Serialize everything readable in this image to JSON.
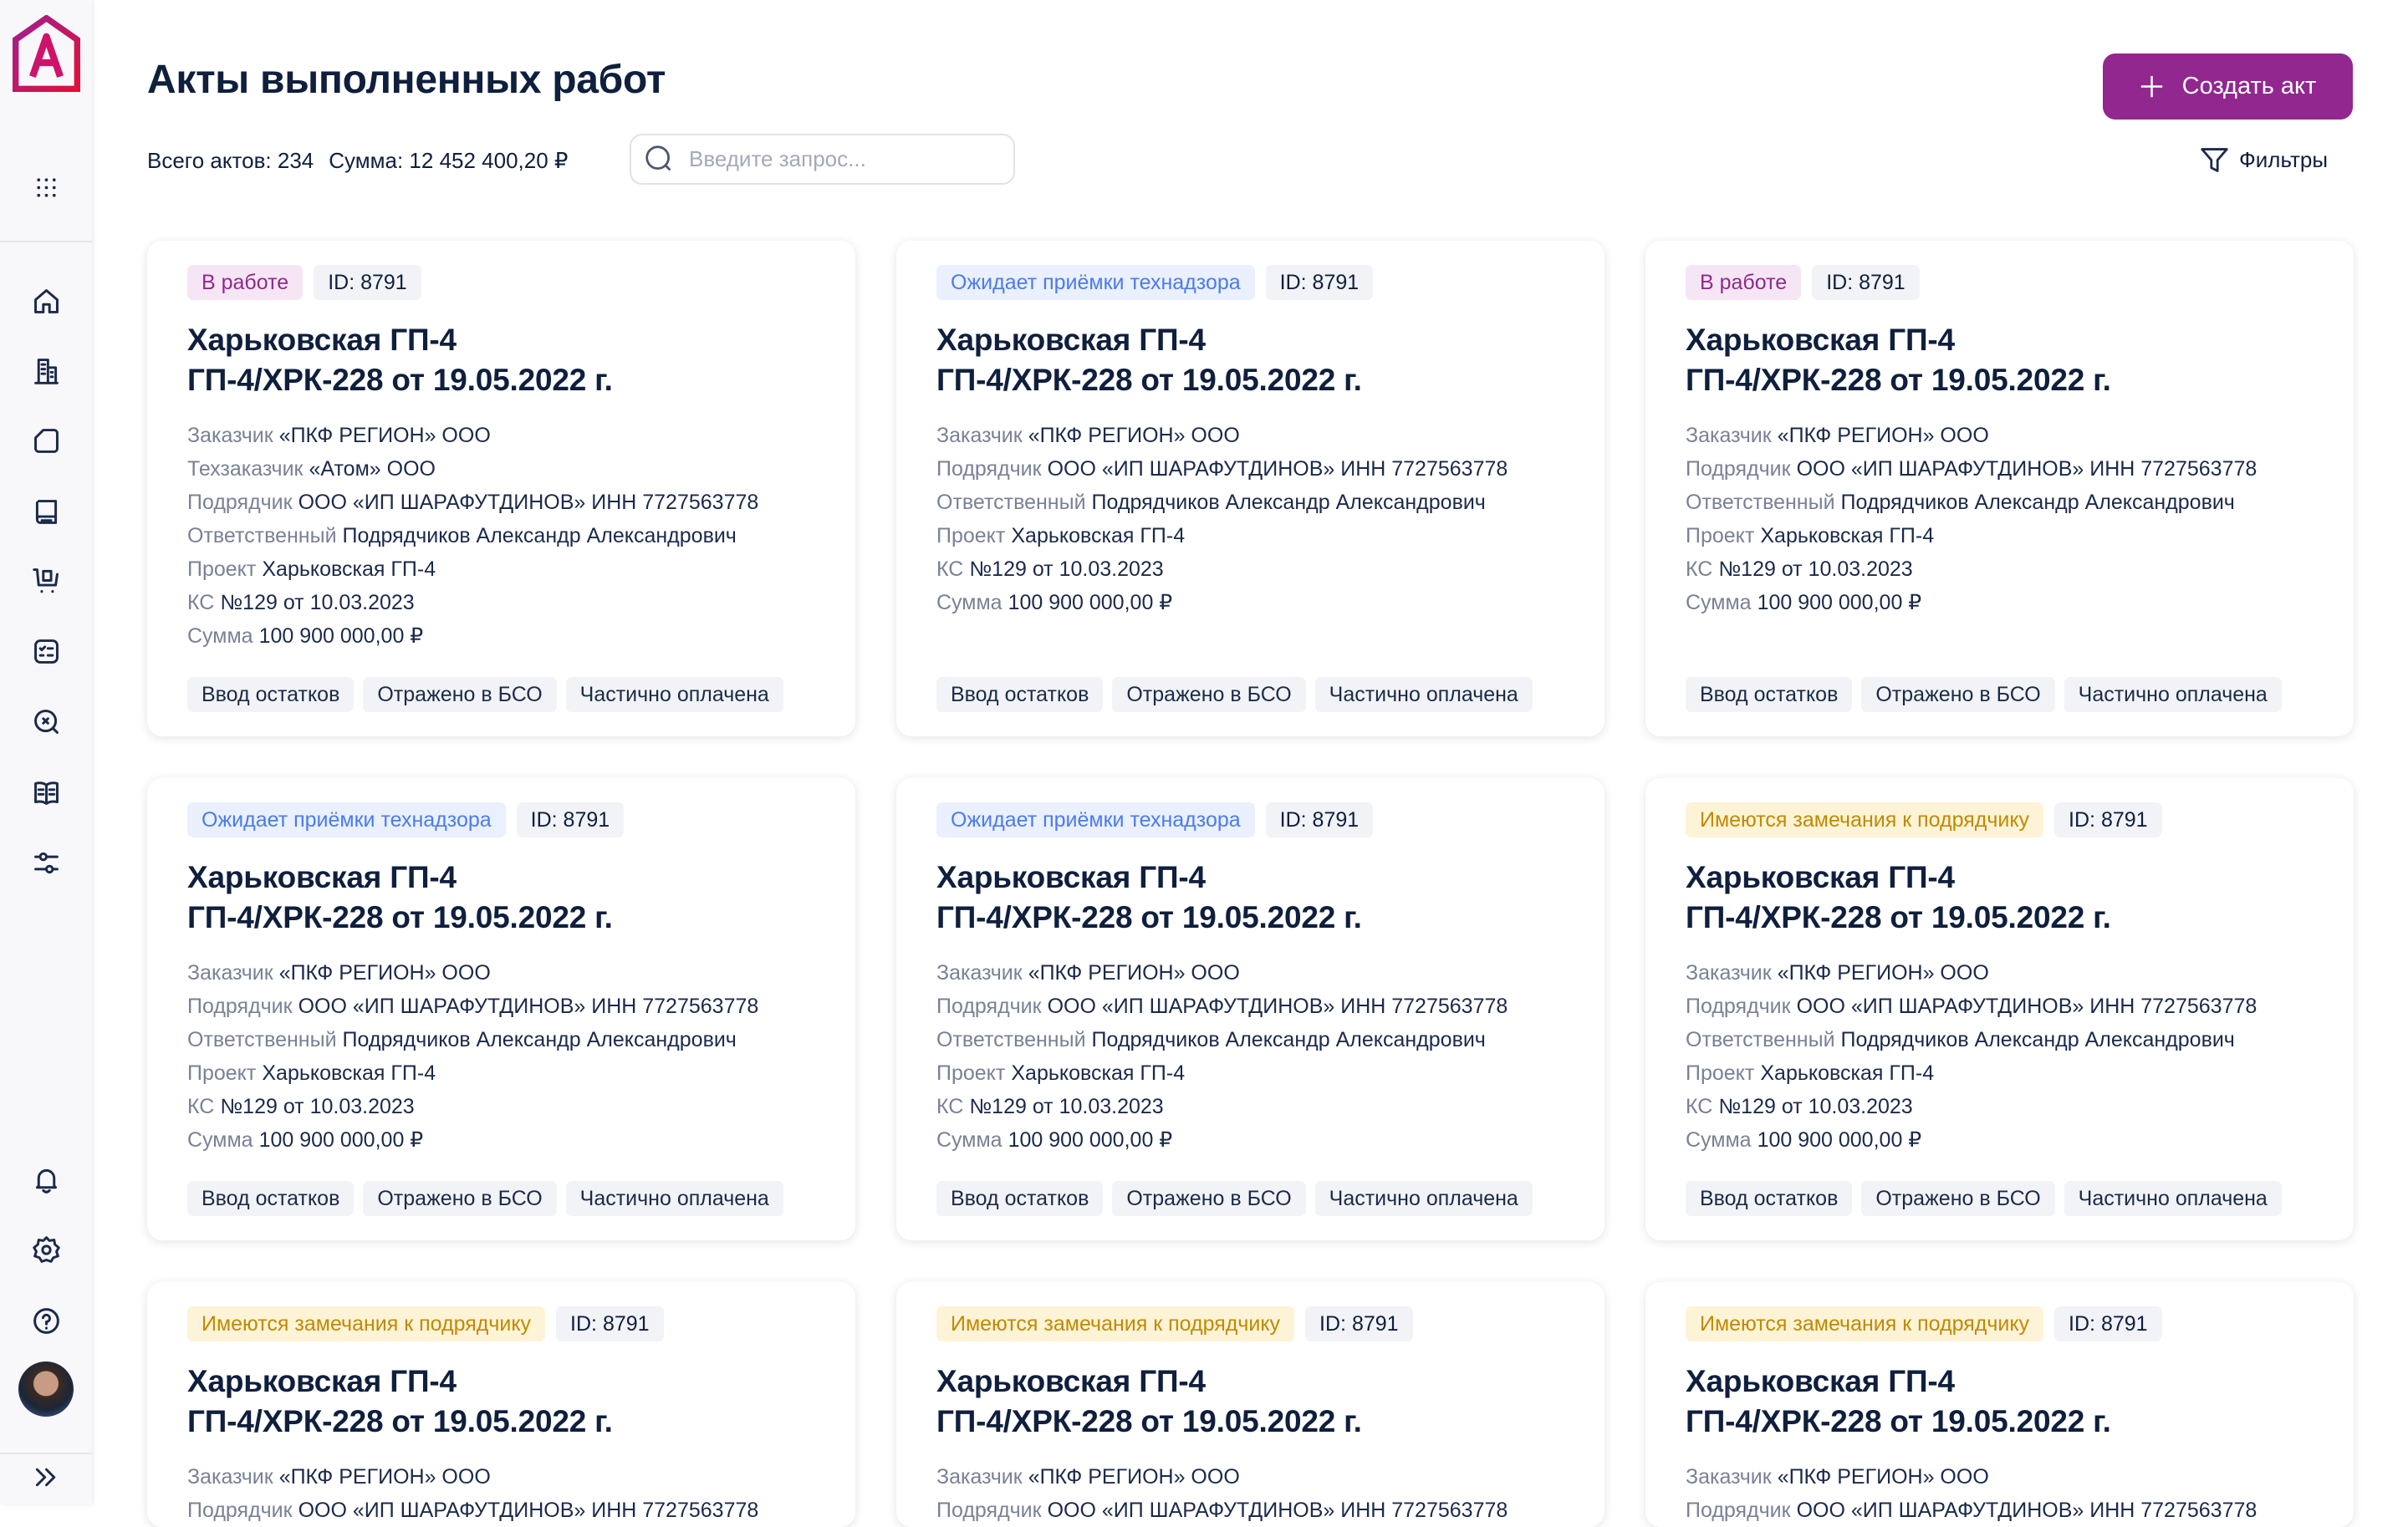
{
  "header": {
    "title": "Акты выполненных работ",
    "create_label": "Создать акт",
    "filters_label": "Фильтры"
  },
  "stats": {
    "total_label": "Всего актов:",
    "total_value": "234",
    "sum_label": "Сумма:",
    "sum_value": "12 452 400,20 ₽"
  },
  "search": {
    "placeholder": "Введите запрос..."
  },
  "colors": {
    "accent": "#92278f",
    "in_work_bg": "#f6e6f5",
    "in_work_fg": "#92278f",
    "awaiting_bg": "#eaf0fd",
    "awaiting_fg": "#4b7bec",
    "remarks_bg": "#fdf3d6",
    "remarks_fg": "#c08a00"
  },
  "sidebar": {
    "icons": [
      "apps-grid-icon",
      "home-icon",
      "building-icon",
      "document-icon",
      "book-icon",
      "cart-icon",
      "checklist-icon",
      "search-cross-icon",
      "open-book-icon",
      "sliders-icon"
    ],
    "bottom_icons": [
      "bell-icon",
      "gear-icon",
      "help-icon"
    ]
  },
  "cards": [
    {
      "status": "В работе",
      "status_type": "in_work",
      "id": "ID: 8791",
      "title": "Харьковская ГП-4",
      "subtitle": "ГП-4/ХРК-228 от 19.05.2022 г.",
      "fields": [
        {
          "label": "Заказчик",
          "value": "«ПКФ РЕГИОН» ООО"
        },
        {
          "label": "Техзаказчик",
          "value": "«Атом» ООО"
        },
        {
          "label": "Подрядчик",
          "value": "ООО «ИП ШАРАФУТДИНОВ» ИНН 7727563778"
        },
        {
          "label": "Ответственный",
          "value": "Подрядчиков Александр Александрович"
        },
        {
          "label": "Проект",
          "value": "Харьковская ГП-4"
        },
        {
          "label": "КС",
          "value": "№129 от 10.03.2023"
        },
        {
          "label": "Сумма",
          "value": "100 900 000,00 ₽"
        }
      ],
      "tags": [
        "Ввод остатков",
        "Отражено в БСО",
        "Частично оплачена"
      ]
    },
    {
      "status": "Ожидает приёмки технадзора",
      "status_type": "awaiting",
      "id": "ID: 8791",
      "title": "Харьковская ГП-4",
      "subtitle": "ГП-4/ХРК-228 от 19.05.2022 г.",
      "fields": [
        {
          "label": "Заказчик",
          "value": "«ПКФ РЕГИОН» ООО"
        },
        {
          "label": "Подрядчик",
          "value": "ООО «ИП ШАРАФУТДИНОВ» ИНН 7727563778"
        },
        {
          "label": "Ответственный",
          "value": "Подрядчиков Александр Александрович"
        },
        {
          "label": "Проект",
          "value": "Харьковская ГП-4"
        },
        {
          "label": "КС",
          "value": "№129 от 10.03.2023"
        },
        {
          "label": "Сумма",
          "value": "100 900 000,00 ₽"
        }
      ],
      "tags": [
        "Ввод остатков",
        "Отражено в БСО",
        "Частично оплачена"
      ]
    },
    {
      "status": "В работе",
      "status_type": "in_work",
      "id": "ID: 8791",
      "title": "Харьковская ГП-4",
      "subtitle": "ГП-4/ХРК-228 от 19.05.2022 г.",
      "fields": [
        {
          "label": "Заказчик",
          "value": "«ПКФ РЕГИОН» ООО"
        },
        {
          "label": "Подрядчик",
          "value": "ООО «ИП ШАРАФУТДИНОВ» ИНН 7727563778"
        },
        {
          "label": "Ответственный",
          "value": "Подрядчиков Александр Александрович"
        },
        {
          "label": "Проект",
          "value": "Харьковская ГП-4"
        },
        {
          "label": "КС",
          "value": "№129 от 10.03.2023"
        },
        {
          "label": "Сумма",
          "value": "100 900 000,00 ₽"
        }
      ],
      "tags": [
        "Ввод остатков",
        "Отражено в БСО",
        "Частично оплачена"
      ]
    },
    {
      "status": "Ожидает приёмки технадзора",
      "status_type": "awaiting",
      "id": "ID: 8791",
      "title": "Харьковская ГП-4",
      "subtitle": "ГП-4/ХРК-228 от 19.05.2022 г.",
      "fields": [
        {
          "label": "Заказчик",
          "value": "«ПКФ РЕГИОН» ООО"
        },
        {
          "label": "Подрядчик",
          "value": "ООО «ИП ШАРАФУТДИНОВ» ИНН 7727563778"
        },
        {
          "label": "Ответственный",
          "value": "Подрядчиков Александр Александрович"
        },
        {
          "label": "Проект",
          "value": "Харьковская ГП-4"
        },
        {
          "label": "КС",
          "value": "№129 от 10.03.2023"
        },
        {
          "label": "Сумма",
          "value": "100 900 000,00 ₽"
        }
      ],
      "tags": [
        "Ввод остатков",
        "Отражено в БСО",
        "Частично оплачена"
      ]
    },
    {
      "status": "Ожидает приёмки технадзора",
      "status_type": "awaiting",
      "id": "ID: 8791",
      "title": "Харьковская ГП-4",
      "subtitle": "ГП-4/ХРК-228 от 19.05.2022 г.",
      "fields": [
        {
          "label": "Заказчик",
          "value": "«ПКФ РЕГИОН» ООО"
        },
        {
          "label": "Подрядчик",
          "value": "ООО «ИП ШАРАФУТДИНОВ» ИНН 7727563778"
        },
        {
          "label": "Ответственный",
          "value": "Подрядчиков Александр Александрович"
        },
        {
          "label": "Проект",
          "value": "Харьковская ГП-4"
        },
        {
          "label": "КС",
          "value": "№129 от 10.03.2023"
        },
        {
          "label": "Сумма",
          "value": "100 900 000,00 ₽"
        }
      ],
      "tags": [
        "Ввод остатков",
        "Отражено в БСО",
        "Частично оплачена"
      ]
    },
    {
      "status": "Имеются замечания к подрядчику",
      "status_type": "remarks",
      "id": "ID: 8791",
      "title": "Харьковская ГП-4",
      "subtitle": "ГП-4/ХРК-228 от 19.05.2022 г.",
      "fields": [
        {
          "label": "Заказчик",
          "value": "«ПКФ РЕГИОН» ООО"
        },
        {
          "label": "Подрядчик",
          "value": "ООО «ИП ШАРАФУТДИНОВ» ИНН 7727563778"
        },
        {
          "label": "Ответственный",
          "value": "Подрядчиков Александр Александрович"
        },
        {
          "label": "Проект",
          "value": "Харьковская ГП-4"
        },
        {
          "label": "КС",
          "value": "№129 от 10.03.2023"
        },
        {
          "label": "Сумма",
          "value": "100 900 000,00 ₽"
        }
      ],
      "tags": [
        "Ввод остатков",
        "Отражено в БСО",
        "Частично оплачена"
      ]
    },
    {
      "status": "Имеются замечания к подрядчику",
      "status_type": "remarks",
      "id": "ID: 8791",
      "title": "Харьковская ГП-4",
      "subtitle": "ГП-4/ХРК-228 от 19.05.2022 г.",
      "fields": [
        {
          "label": "Заказчик",
          "value": "«ПКФ РЕГИОН» ООО"
        },
        {
          "label": "Подрядчик",
          "value": "ООО «ИП ШАРАФУТДИНОВ» ИНН 7727563778"
        }
      ],
      "tags": []
    },
    {
      "status": "Имеются замечания к подрядчику",
      "status_type": "remarks",
      "id": "ID: 8791",
      "title": "Харьковская ГП-4",
      "subtitle": "ГП-4/ХРК-228 от 19.05.2022 г.",
      "fields": [
        {
          "label": "Заказчик",
          "value": "«ПКФ РЕГИОН» ООО"
        },
        {
          "label": "Подрядчик",
          "value": "ООО «ИП ШАРАФУТДИНОВ» ИНН 7727563778"
        }
      ],
      "tags": []
    },
    {
      "status": "Имеются замечания к подрядчику",
      "status_type": "remarks",
      "id": "ID: 8791",
      "title": "Харьковская ГП-4",
      "subtitle": "ГП-4/ХРК-228 от 19.05.2022 г.",
      "fields": [
        {
          "label": "Заказчик",
          "value": "«ПКФ РЕГИОН» ООО"
        },
        {
          "label": "Подрядчик",
          "value": "ООО «ИП ШАРАФУТДИНОВ» ИНН 7727563778"
        }
      ],
      "tags": []
    }
  ]
}
